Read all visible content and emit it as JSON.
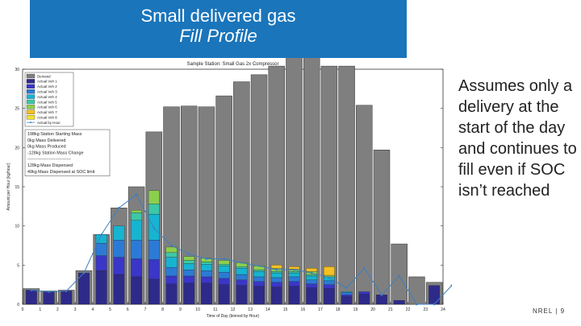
{
  "slide": {
    "title_line1": "Small delivered gas",
    "title_line2": "Fill Profile",
    "note": "Assumes only a delivery at the start of the day and continues to fill even if SOC isn’t reached",
    "footer": "NREL | 9"
  },
  "chart_data": {
    "type": "bar",
    "title": "Sample Station: Small Gas 2x Compressor",
    "xlabel": "Time of Day (binned by Hour)",
    "ylabel": "Amount per Hour [kg/hour]",
    "ylim": [
      0,
      30
    ],
    "yticks": [
      0,
      5,
      10,
      15,
      20,
      25,
      30
    ],
    "categories": [
      "0",
      "1",
      "2",
      "3",
      "4",
      "5",
      "6",
      "7",
      "8",
      "9",
      "10",
      "11",
      "12",
      "13",
      "14",
      "15",
      "16",
      "17",
      "18",
      "19",
      "20",
      "21",
      "22",
      "23",
      "24"
    ],
    "demand": [
      2,
      1.7,
      1.8,
      4.3,
      8.9,
      12.3,
      15,
      22,
      25.2,
      25.3,
      25.2,
      26.6,
      28.4,
      29.3,
      30.4,
      33.6,
      32.9,
      30.4,
      30.4,
      25.4,
      19.7,
      7.7,
      3.5,
      2.8,
      0
    ],
    "series": [
      {
        "name": "Actual Veh 1",
        "color": "#2e2a8a",
        "values": [
          1.8,
          1.6,
          1.7,
          4.0,
          4.3,
          3.8,
          3.5,
          3.2,
          2.6,
          2.7,
          2.7,
          2.5,
          2.4,
          2.3,
          2.2,
          2.3,
          2.1,
          2.0,
          1.0,
          1.3,
          1.2,
          0.5,
          0.0,
          2.4,
          0
        ]
      },
      {
        "name": "Actual Veh 2",
        "color": "#3a36c8",
        "values": [
          0,
          0,
          0,
          0,
          1.9,
          2.2,
          2.3,
          2.5,
          1.0,
          0.9,
          0.8,
          0.8,
          0.7,
          0.6,
          0.6,
          0.6,
          0.5,
          0.5,
          0.2,
          0.3,
          0,
          0,
          0,
          0,
          0
        ]
      },
      {
        "name": "Actual Veh 3",
        "color": "#2b7bd6",
        "values": [
          0,
          0,
          0,
          0,
          1.6,
          2.2,
          2.4,
          2.5,
          1.1,
          0.8,
          0.8,
          0.8,
          0.7,
          0.6,
          0.6,
          0.6,
          0.5,
          0.5,
          0.3,
          0,
          0,
          0,
          0,
          0,
          0
        ]
      },
      {
        "name": "Actual Veh 4",
        "color": "#17b4d2",
        "values": [
          0,
          0,
          0,
          0,
          1.1,
          1.8,
          2.5,
          3.3,
          1.3,
          0.8,
          0.8,
          0.8,
          0.8,
          0.7,
          0.6,
          0.5,
          0.5,
          0.5,
          0.1,
          0,
          0,
          0,
          0,
          0,
          0
        ]
      },
      {
        "name": "Actual Veh 5",
        "color": "#3cc8a8",
        "values": [
          0,
          0,
          0,
          0,
          0,
          0,
          1.0,
          1.3,
          0.6,
          0.4,
          0.3,
          0.2,
          0.2,
          0.2,
          0.2,
          0.2,
          0.2,
          0,
          0,
          0,
          0,
          0,
          0,
          0,
          0
        ]
      },
      {
        "name": "Actual Veh 6",
        "color": "#8ccf4d",
        "values": [
          0,
          0,
          0,
          0,
          0,
          0,
          0.3,
          1.7,
          0.7,
          0.5,
          0.5,
          0.5,
          0.5,
          0.5,
          0.4,
          0.3,
          0.4,
          0.2,
          0,
          0,
          0,
          0,
          0,
          0,
          0
        ]
      },
      {
        "name": "Actual Veh 7",
        "color": "#f5c023",
        "values": [
          0,
          0,
          0,
          0,
          0,
          0,
          0,
          0,
          0,
          0,
          0,
          0,
          0,
          0,
          0.4,
          0.3,
          0.4,
          1.1,
          0,
          0,
          0,
          0,
          0,
          0,
          0
        ]
      },
      {
        "name": "Actual Veh 8",
        "color": "#f2e230",
        "values": [
          0,
          0,
          0,
          0,
          0,
          0,
          0,
          0,
          0,
          0,
          0,
          0,
          0,
          0,
          0,
          0,
          0,
          0,
          0,
          0,
          0,
          0,
          0,
          0,
          0
        ]
      }
    ],
    "actual_by_hour": [
      1.8,
      1.6,
      1.7,
      4.0,
      8.9,
      12.3,
      14.0,
      9.7,
      7.5,
      6.4,
      5.8,
      5.8,
      5.3,
      4.9,
      4.4,
      4.4,
      4.0,
      3.4,
      2.1,
      4.6,
      1.2,
      3.6,
      0.0,
      0.0,
      2.4
    ],
    "legend": [
      {
        "name": "Demand",
        "color": "#7f7f7f"
      },
      {
        "name": "Actual Veh 1",
        "color": "#2e2a8a"
      },
      {
        "name": "Actual Veh 2",
        "color": "#3a36c8"
      },
      {
        "name": "Actual Veh 3",
        "color": "#2b7bd6"
      },
      {
        "name": "Actual Veh 4",
        "color": "#17b4d2"
      },
      {
        "name": "Actual Veh 5",
        "color": "#3cc8a8"
      },
      {
        "name": "Actual Veh 6",
        "color": "#8ccf4d"
      },
      {
        "name": "Actual Veh 7",
        "color": "#f5c023"
      },
      {
        "name": "Actual Veh 8",
        "color": "#f2e230"
      },
      {
        "name": "Actual by Hour",
        "color": "#3f7fc0"
      }
    ],
    "annotation": [
      "198kg Station Starting Mass",
      "0kg Mass Delivered",
      "0kg Mass Produced",
      "-128kg Station Mass Change",
      "------------------------------",
      "128kg Mass Dispensed",
      "49kg Mass Dispensed at SOC limit"
    ]
  }
}
